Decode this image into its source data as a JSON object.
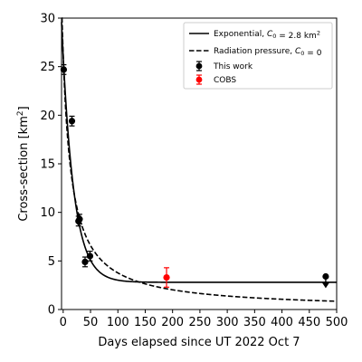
{
  "chart_data": {
    "type": "scatter",
    "title": "",
    "xlabel": "Days elapsed since UT 2022 Oct 7",
    "ylabel": "Cross-section [km²]",
    "xlim": [
      -3,
      500
    ],
    "ylim": [
      0,
      30
    ],
    "xticks": [
      0,
      50,
      100,
      150,
      200,
      250,
      300,
      350,
      400,
      450,
      500
    ],
    "yticks": [
      0,
      5,
      10,
      15,
      20,
      25,
      30
    ],
    "grid": false,
    "legend_position": "top-right",
    "series": [
      {
        "name": "This work",
        "kind": "points",
        "color": "#000000",
        "points": [
          {
            "x": 1,
            "y": 24.7,
            "err": 0.5
          },
          {
            "x": 16,
            "y": 19.4,
            "err": 0.5
          },
          {
            "x": 28,
            "y": 9.1,
            "err": 0.5
          },
          {
            "x": 30,
            "y": 9.3,
            "err": 0.5
          },
          {
            "x": 40,
            "y": 4.9,
            "err": 0.5
          },
          {
            "x": 49,
            "y": 5.5,
            "err": 0.5
          }
        ],
        "upper_limit": {
          "x": 480,
          "y": 3.4
        }
      },
      {
        "name": "COBS",
        "kind": "points",
        "color": "#ff0000",
        "points": [
          {
            "x": 189,
            "y": 3.3,
            "err": 1.0
          }
        ]
      },
      {
        "name": "Exponential, C₀ = 2.8 km²",
        "kind": "line",
        "style": "solid",
        "color": "#000000",
        "model": "exponential",
        "params": {
          "C0": 2.8,
          "A": 23.3,
          "tau": 21.5
        },
        "x_range": [
          -3,
          500
        ]
      },
      {
        "name": "Radiation pressure, C₀ = 0",
        "kind": "line",
        "style": "dashed",
        "color": "#000000",
        "model": "radiation_pressure",
        "params": {
          "C0": 0,
          "A": 26.2,
          "t0": 16.8
        },
        "x_range": [
          -3,
          500
        ]
      }
    ],
    "legend": [
      {
        "label": "Exponential, C₀ = 2.8 km²",
        "marker": "solid-line"
      },
      {
        "label": "Radiation pressure, C₀ = 0",
        "marker": "dashed-line"
      },
      {
        "label": "This work",
        "marker": "black-errorbar-point"
      },
      {
        "label": "COBS",
        "marker": "red-errorbar-point"
      }
    ]
  }
}
